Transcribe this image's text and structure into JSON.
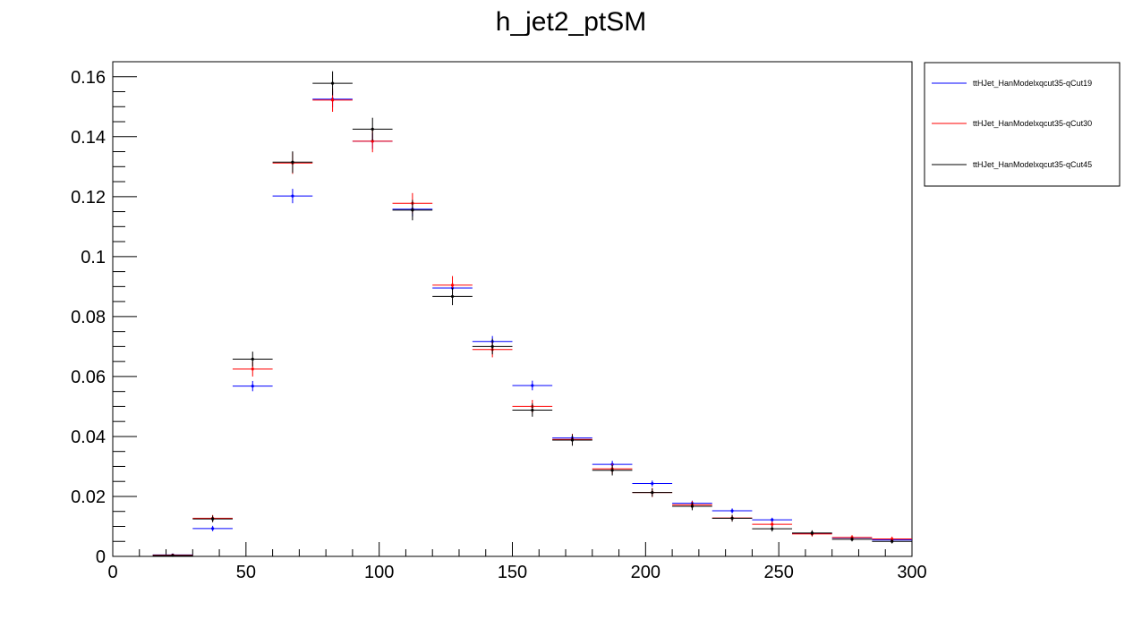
{
  "chart_data": {
    "type": "scatter",
    "title": "h_jet2_ptSM",
    "xlabel": "",
    "ylabel": "",
    "xlim": [
      0,
      300
    ],
    "ylim": [
      0,
      0.165
    ],
    "bin_width": 15,
    "x_ticks": [
      0,
      50,
      100,
      150,
      200,
      250,
      300
    ],
    "x_tick_labels": [
      "0",
      "50",
      "100",
      "150",
      "200",
      "250",
      "300"
    ],
    "y_ticks": [
      0,
      0.02,
      0.04,
      0.06,
      0.08,
      0.1,
      0.12,
      0.14,
      0.16
    ],
    "y_tick_labels": [
      "0",
      "0.02",
      "0.04",
      "0.06",
      "0.08",
      "0.1",
      "0.12",
      "0.14",
      "0.16"
    ],
    "grid": false,
    "legend_position": "top-right outside plot",
    "x": [
      22.5,
      37.5,
      52.5,
      67.5,
      82.5,
      97.5,
      112.5,
      127.5,
      142.5,
      157.5,
      172.5,
      187.5,
      202.5,
      217.5,
      232.5,
      247.5,
      262.5,
      277.5,
      292.5
    ],
    "series": [
      {
        "name": "ttHJet_HanModelxqcut35-qCut19",
        "color": "#0000ff",
        "values": [
          0.0005,
          0.0093,
          0.0568,
          0.1202,
          0.1525,
          0.1385,
          0.1158,
          0.0895,
          0.0717,
          0.057,
          0.0395,
          0.0307,
          0.0243,
          0.0177,
          0.0152,
          0.0122,
          0.0077,
          0.0062,
          0.0055
        ],
        "errors": [
          0.0003,
          0.0009,
          0.0017,
          0.0024,
          0.0027,
          0.0026,
          0.0024,
          0.0021,
          0.0018,
          0.0016,
          0.0013,
          0.0012,
          0.001,
          0.0009,
          0.0008,
          0.0007,
          0.0006,
          0.0005,
          0.0005
        ]
      },
      {
        "name": "ttHJet_HanModelxqcut35-qCut30",
        "color": "#ff0000",
        "values": [
          0.0004,
          0.0127,
          0.0625,
          0.1312,
          0.1522,
          0.1385,
          0.1178,
          0.0905,
          0.069,
          0.05,
          0.039,
          0.0292,
          0.0213,
          0.0172,
          0.0128,
          0.0107,
          0.0075,
          0.0063,
          0.0058
        ],
        "errors": [
          0.0003,
          0.0011,
          0.0025,
          0.0036,
          0.0039,
          0.0037,
          0.0034,
          0.003,
          0.0026,
          0.0022,
          0.0019,
          0.0017,
          0.0015,
          0.0013,
          0.0011,
          0.001,
          0.0009,
          0.0008,
          0.0008
        ]
      },
      {
        "name": "ttHJet_HanModelxqcut35-qCut45",
        "color": "#000000",
        "values": [
          0.0003,
          0.0125,
          0.0658,
          0.1315,
          0.1578,
          0.1425,
          0.1155,
          0.0867,
          0.07,
          0.0488,
          0.0388,
          0.0287,
          0.0213,
          0.0167,
          0.0127,
          0.0092,
          0.0078,
          0.0057,
          0.005
        ],
        "errors": [
          0.0003,
          0.0011,
          0.0025,
          0.0036,
          0.004,
          0.0038,
          0.0034,
          0.0029,
          0.0026,
          0.0022,
          0.0019,
          0.0017,
          0.0014,
          0.0013,
          0.0011,
          0.0009,
          0.0009,
          0.0007,
          0.0007
        ]
      }
    ]
  }
}
